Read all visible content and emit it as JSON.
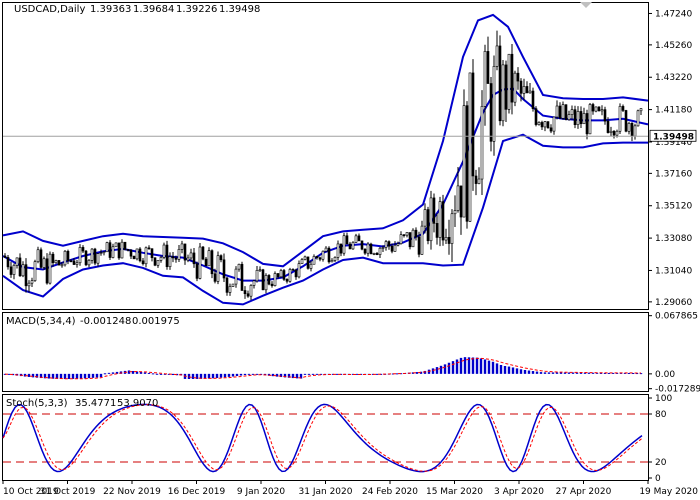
{
  "chart_data": [
    {
      "type": "candlestick",
      "title": "USDCAD,Daily",
      "ohlc": [
        "1.39363",
        "1.39684",
        "1.39226",
        "1.39498"
      ],
      "last_price": "1.39498",
      "y_ticks": [
        "1.47240",
        "1.45260",
        "1.43220",
        "1.41180",
        "1.39140",
        "1.37160",
        "1.35120",
        "1.33080",
        "1.31040",
        "1.29060"
      ],
      "ylim": [
        1.2861,
        1.479
      ],
      "x_ticks": [
        "10 Oct 2019",
        "31 Oct 2019",
        "22 Nov 2019",
        "16 Dec 2019",
        "9 Jan 2020",
        "31 Jan 2020",
        "24 Feb 2020",
        "15 Mar 2020",
        "3 Apr 2020",
        "27 Apr 2020",
        "19 May 2020"
      ],
      "bollinger": {
        "middle": [
          [
            0,
            1.3195
          ],
          [
            20,
            1.3125
          ],
          [
            40,
            1.311
          ],
          [
            60,
            1.3155
          ],
          [
            80,
            1.3195
          ],
          [
            100,
            1.3225
          ],
          [
            120,
            1.324
          ],
          [
            140,
            1.3215
          ],
          [
            160,
            1.3195
          ],
          [
            180,
            1.3185
          ],
          [
            200,
            1.3135
          ],
          [
            220,
            1.308
          ],
          [
            240,
            1.304
          ],
          [
            260,
            1.304
          ],
          [
            280,
            1.306
          ],
          [
            300,
            1.313
          ],
          [
            320,
            1.3215
          ],
          [
            340,
            1.326
          ],
          [
            360,
            1.327
          ],
          [
            380,
            1.3255
          ],
          [
            400,
            1.328
          ],
          [
            420,
            1.3335
          ],
          [
            440,
            1.352
          ],
          [
            460,
            1.379
          ],
          [
            480,
            1.41
          ],
          [
            490,
            1.421
          ],
          [
            500,
            1.4245
          ],
          [
            510,
            1.425
          ],
          [
            520,
            1.4185
          ],
          [
            540,
            1.408
          ],
          [
            560,
            1.406
          ],
          [
            580,
            1.405
          ],
          [
            600,
            1.405
          ],
          [
            620,
            1.406
          ],
          [
            645,
            1.4025
          ]
        ],
        "upper": [
          [
            0,
            1.3325
          ],
          [
            20,
            1.335
          ],
          [
            40,
            1.329
          ],
          [
            60,
            1.326
          ],
          [
            80,
            1.329
          ],
          [
            100,
            1.332
          ],
          [
            120,
            1.3335
          ],
          [
            140,
            1.332
          ],
          [
            160,
            1.3315
          ],
          [
            180,
            1.331
          ],
          [
            200,
            1.3305
          ],
          [
            220,
            1.3275
          ],
          [
            240,
            1.322
          ],
          [
            260,
            1.3145
          ],
          [
            280,
            1.313
          ],
          [
            300,
            1.3225
          ],
          [
            320,
            1.332
          ],
          [
            340,
            1.335
          ],
          [
            360,
            1.336
          ],
          [
            380,
            1.337
          ],
          [
            400,
            1.342
          ],
          [
            420,
            1.352
          ],
          [
            440,
            1.392
          ],
          [
            460,
            1.445
          ],
          [
            475,
            1.468
          ],
          [
            490,
            1.4715
          ],
          [
            505,
            1.464
          ],
          [
            520,
            1.445
          ],
          [
            540,
            1.421
          ],
          [
            560,
            1.419
          ],
          [
            580,
            1.4185
          ],
          [
            600,
            1.4185
          ],
          [
            620,
            1.4195
          ],
          [
            645,
            1.4175
          ]
        ],
        "lower": [
          [
            0,
            1.307
          ],
          [
            20,
            1.298
          ],
          [
            40,
            1.294
          ],
          [
            60,
            1.305
          ],
          [
            80,
            1.311
          ],
          [
            100,
            1.3135
          ],
          [
            120,
            1.315
          ],
          [
            140,
            1.312
          ],
          [
            160,
            1.307
          ],
          [
            180,
            1.306
          ],
          [
            200,
            1.2975
          ],
          [
            220,
            1.29
          ],
          [
            240,
            1.289
          ],
          [
            260,
            1.2945
          ],
          [
            280,
            1.2995
          ],
          [
            300,
            1.304
          ],
          [
            320,
            1.311
          ],
          [
            340,
            1.317
          ],
          [
            360,
            1.3185
          ],
          [
            380,
            1.315
          ],
          [
            400,
            1.315
          ],
          [
            420,
            1.315
          ],
          [
            440,
            1.3135
          ],
          [
            460,
            1.314
          ],
          [
            480,
            1.35
          ],
          [
            500,
            1.392
          ],
          [
            520,
            1.396
          ],
          [
            540,
            1.389
          ],
          [
            560,
            1.388
          ],
          [
            580,
            1.388
          ],
          [
            600,
            1.3905
          ],
          [
            620,
            1.391
          ],
          [
            645,
            1.391
          ]
        ]
      }
    },
    {
      "type": "histogram",
      "title": "MACD(5,34,4)",
      "values_text": [
        "-0.001248",
        "0.001975"
      ],
      "y_ticks": [
        "0.067865",
        "0.00",
        "-0.017289"
      ],
      "ylim": [
        -0.02,
        0.071
      ]
    },
    {
      "type": "line",
      "title": "Stoch(5,3,3)",
      "values_text": [
        "35.4771",
        "53.9070"
      ],
      "y_ticks": [
        "100",
        "80",
        "20",
        "0"
      ],
      "levels": [
        80,
        20
      ],
      "ylim": [
        0,
        100
      ]
    }
  ],
  "colors": {
    "bands": "#0000cc",
    "candle": "#000000",
    "histogram": "#0000cc",
    "signal": "#ff0000",
    "level": "#cc0000",
    "grid": "#c0c0c0"
  }
}
